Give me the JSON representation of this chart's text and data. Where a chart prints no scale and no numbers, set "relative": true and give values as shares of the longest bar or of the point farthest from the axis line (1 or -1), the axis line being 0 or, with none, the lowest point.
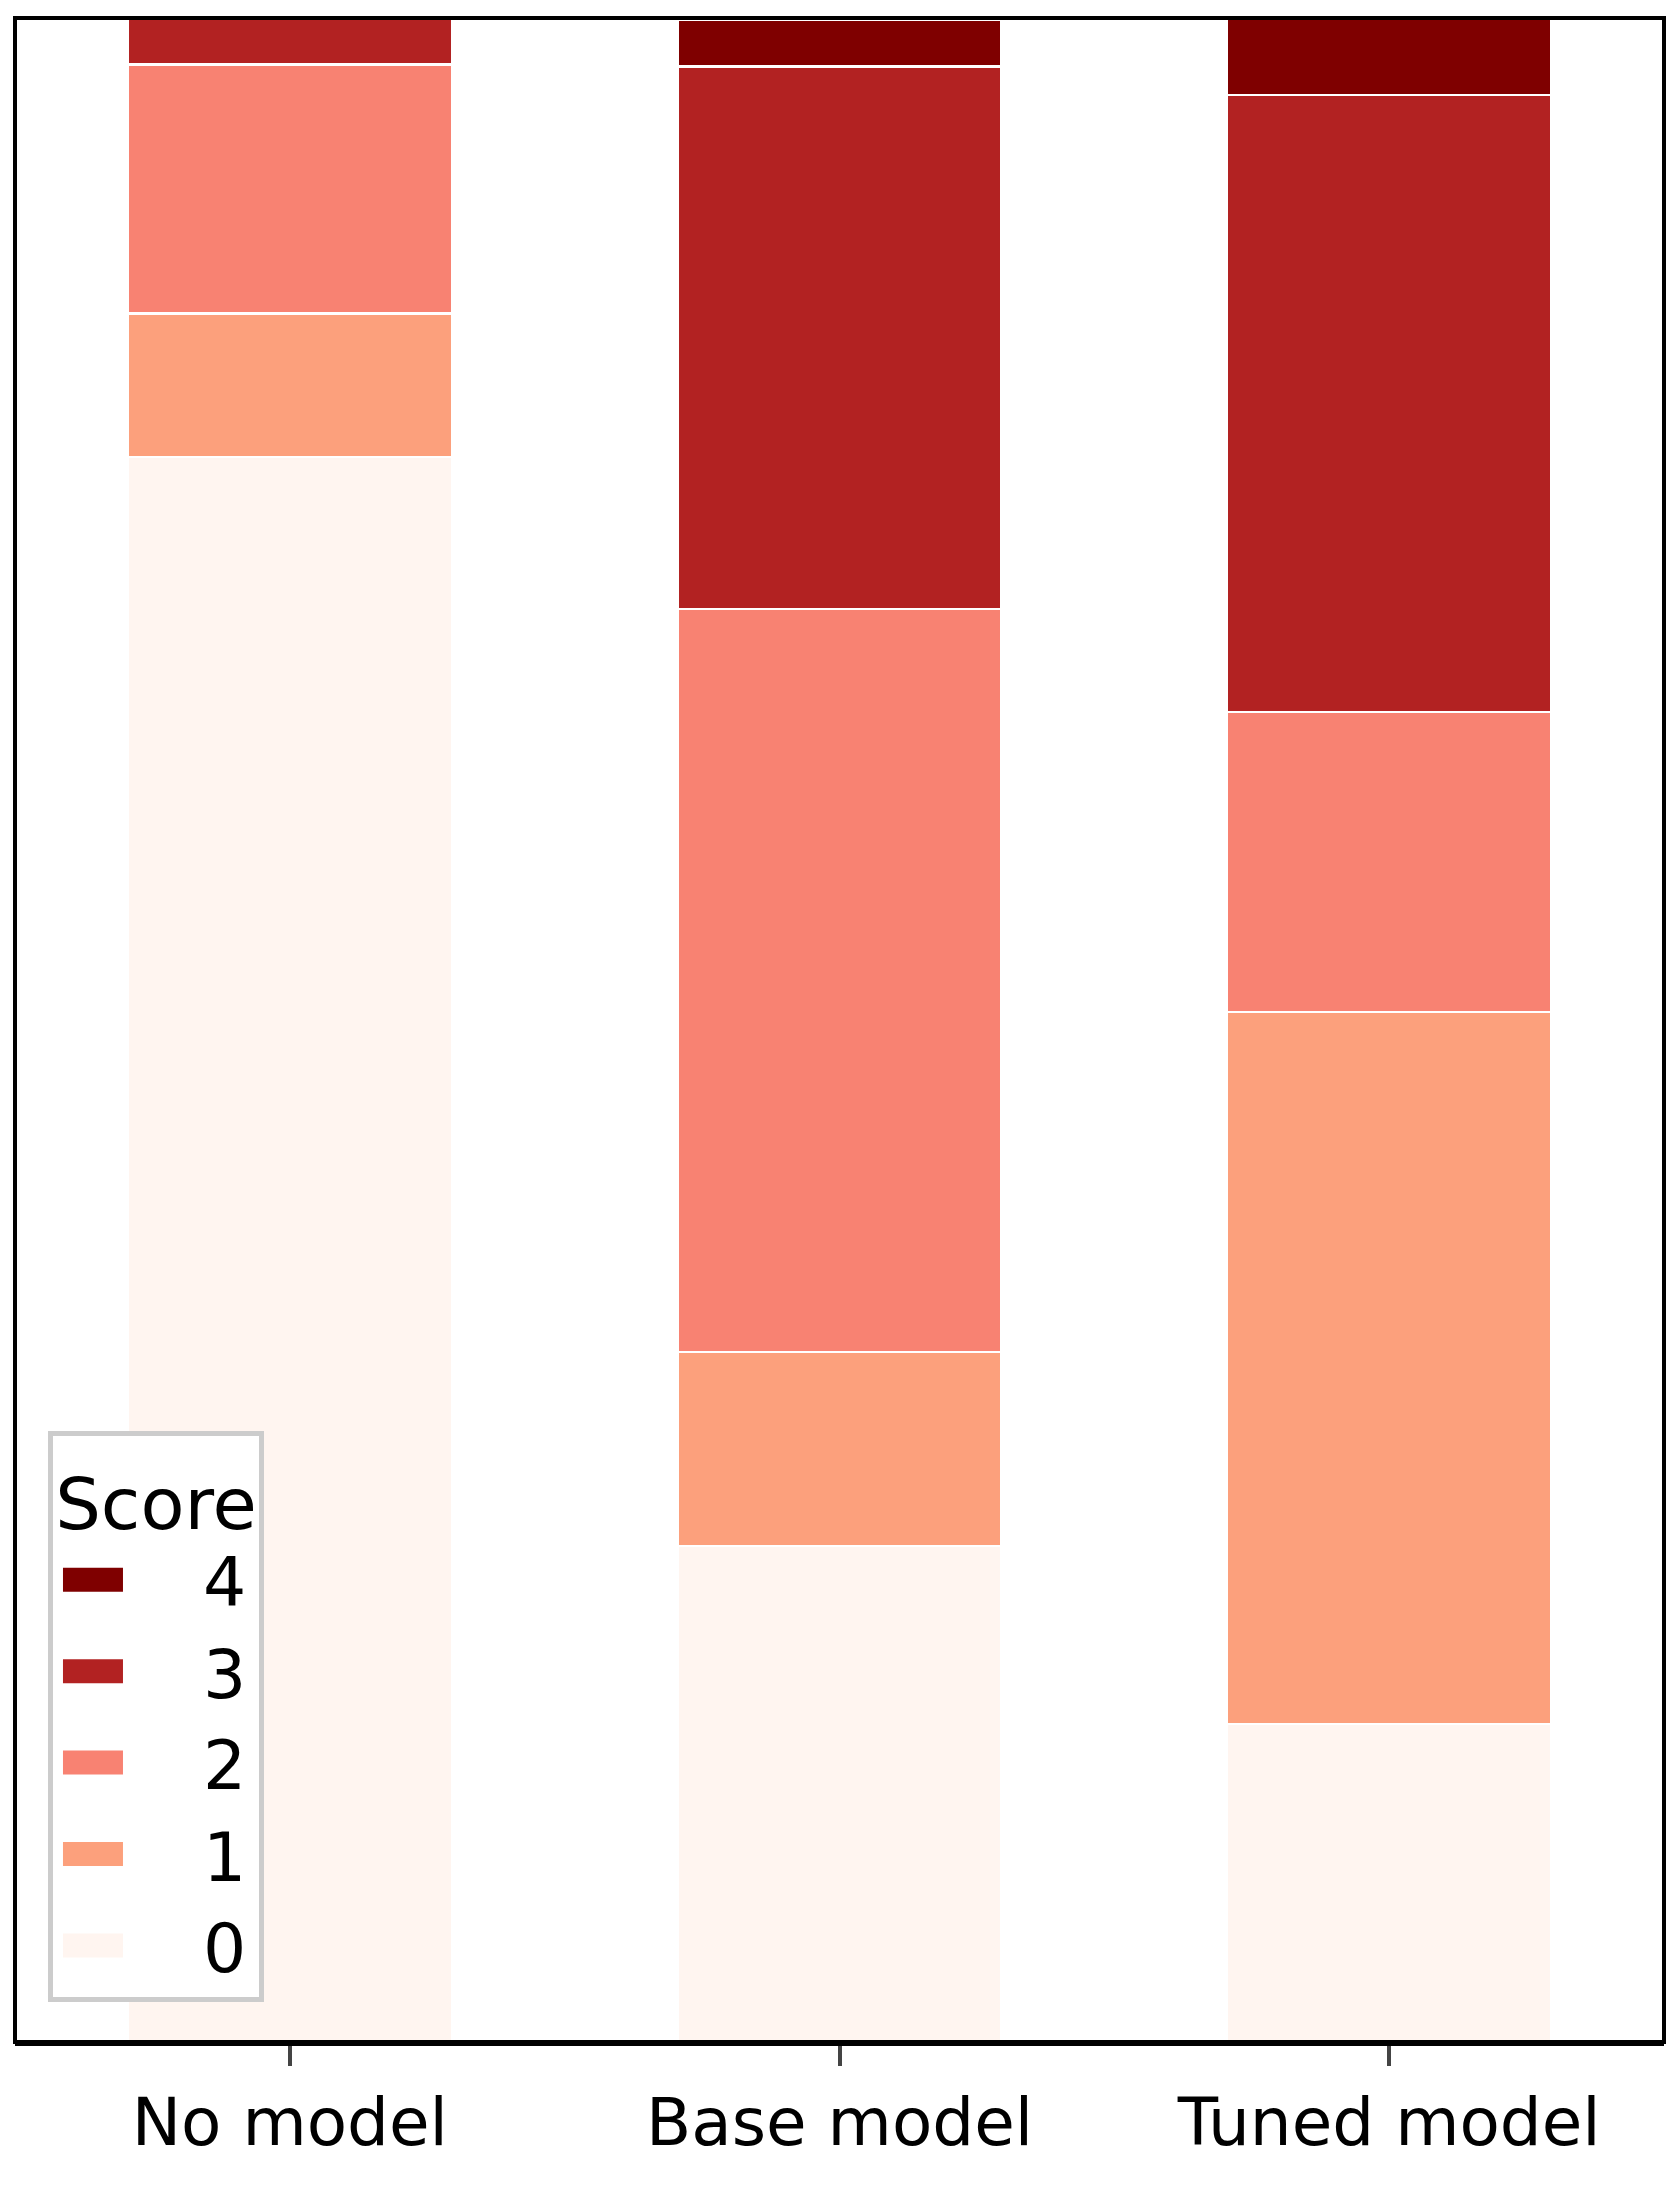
{
  "chart_data": {
    "type": "bar",
    "relative": true,
    "stacked": true,
    "categories": [
      "No model",
      "Base model",
      "Tuned model"
    ],
    "legend_title": "Score",
    "legend": "bottom left",
    "grid": false,
    "series": [
      {
        "name": "0",
        "color": "#fff5f0",
        "values": [
          0.783,
          0.245,
          0.157
        ]
      },
      {
        "name": "1",
        "color": "#fca07c",
        "values": [
          0.071,
          0.096,
          0.352
        ]
      },
      {
        "name": "2",
        "color": "#f88272",
        "values": [
          0.123,
          0.367,
          0.148
        ]
      },
      {
        "name": "3",
        "color": "#b22222",
        "values": [
          0.023,
          0.268,
          0.305
        ]
      },
      {
        "name": "4",
        "color": "#7f0000",
        "values": [
          0,
          0.023,
          0.038
        ]
      }
    ]
  }
}
